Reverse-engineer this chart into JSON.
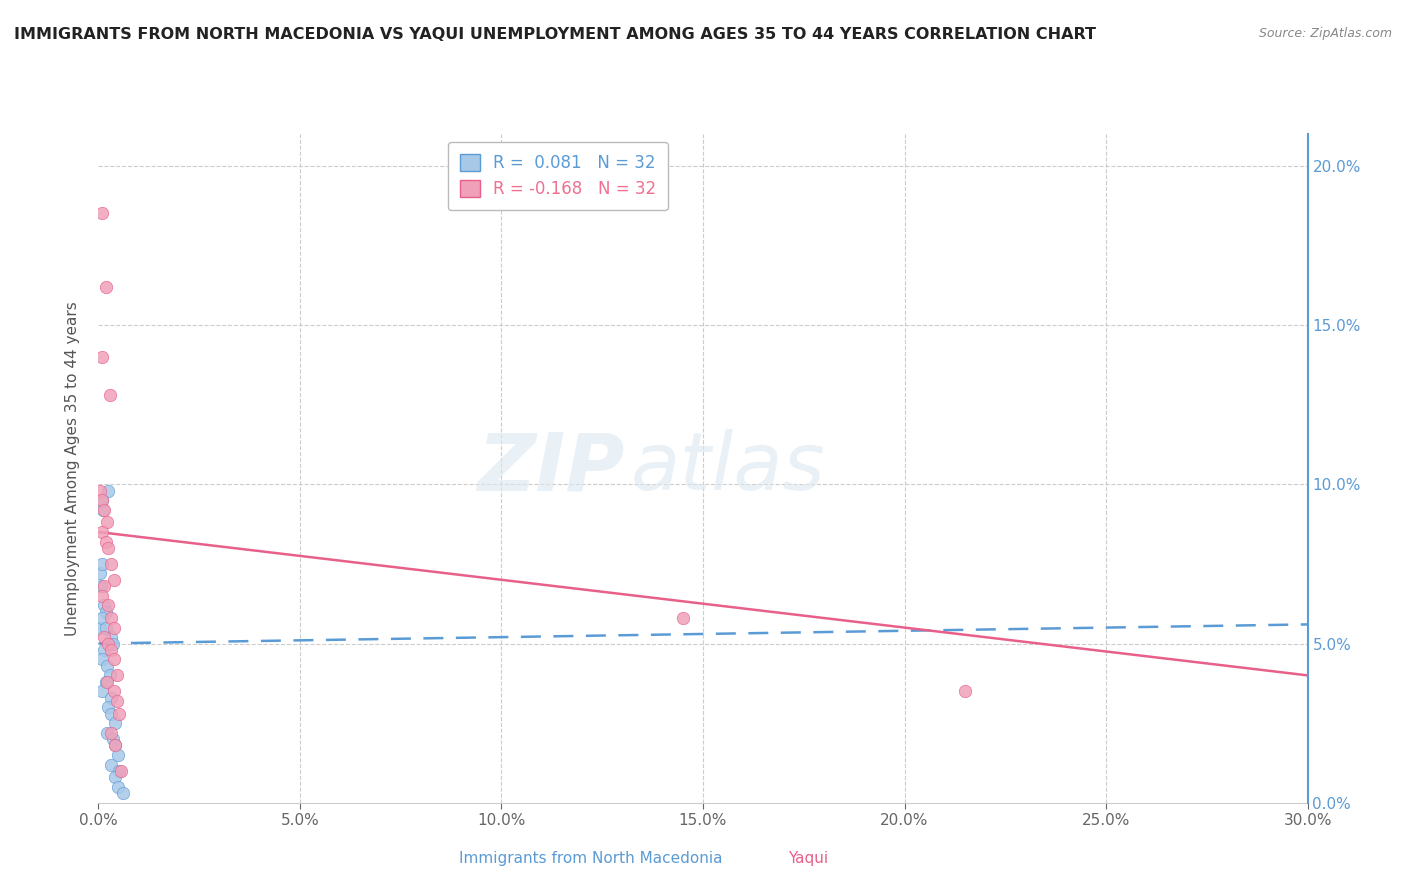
{
  "title": "IMMIGRANTS FROM NORTH MACEDONIA VS YAQUI UNEMPLOYMENT AMONG AGES 35 TO 44 YEARS CORRELATION CHART",
  "source": "Source: ZipAtlas.com",
  "xlabel_ticks": [
    "0.0%",
    "5.0%",
    "10.0%",
    "15.0%",
    "20.0%",
    "25.0%",
    "30.0%"
  ],
  "ylabel_right_ticks": [
    "0.0%",
    "5.0%",
    "10.0%",
    "15.0%",
    "20.0%"
  ],
  "xlim": [
    0.0,
    0.3
  ],
  "ylim": [
    0.0,
    0.21
  ],
  "xlabel_bottom": [
    "Immigrants from North Macedonia",
    "Yaqui"
  ],
  "watermark_zip": "ZIP",
  "watermark_atlas": "atlas",
  "legend": [
    {
      "label": "R =  0.081   N = 32",
      "color": "#5b9bd5"
    },
    {
      "label": "R = -0.168   N = 32",
      "color": "#f07090"
    }
  ],
  "blue_scatter": [
    [
      0.0005,
      0.055
    ],
    [
      0.0012,
      0.092
    ],
    [
      0.0008,
      0.095
    ],
    [
      0.0025,
      0.098
    ],
    [
      0.0003,
      0.072
    ],
    [
      0.0006,
      0.068
    ],
    [
      0.001,
      0.075
    ],
    [
      0.0015,
      0.062
    ],
    [
      0.002,
      0.06
    ],
    [
      0.0008,
      0.058
    ],
    [
      0.0018,
      0.055
    ],
    [
      0.003,
      0.052
    ],
    [
      0.0035,
      0.05
    ],
    [
      0.0015,
      0.048
    ],
    [
      0.0008,
      0.045
    ],
    [
      0.0022,
      0.043
    ],
    [
      0.0028,
      0.04
    ],
    [
      0.0018,
      0.038
    ],
    [
      0.001,
      0.035
    ],
    [
      0.0032,
      0.033
    ],
    [
      0.0025,
      0.03
    ],
    [
      0.003,
      0.028
    ],
    [
      0.004,
      0.025
    ],
    [
      0.0022,
      0.022
    ],
    [
      0.0035,
      0.02
    ],
    [
      0.004,
      0.018
    ],
    [
      0.0048,
      0.015
    ],
    [
      0.003,
      0.012
    ],
    [
      0.0052,
      0.01
    ],
    [
      0.0042,
      0.008
    ],
    [
      0.0048,
      0.005
    ],
    [
      0.006,
      0.003
    ]
  ],
  "pink_scatter": [
    [
      0.0008,
      0.185
    ],
    [
      0.0018,
      0.162
    ],
    [
      0.001,
      0.14
    ],
    [
      0.0028,
      0.128
    ],
    [
      0.0003,
      0.098
    ],
    [
      0.0008,
      0.095
    ],
    [
      0.0015,
      0.092
    ],
    [
      0.0022,
      0.088
    ],
    [
      0.001,
      0.085
    ],
    [
      0.0018,
      0.082
    ],
    [
      0.0025,
      0.08
    ],
    [
      0.0032,
      0.075
    ],
    [
      0.0038,
      0.07
    ],
    [
      0.0015,
      0.068
    ],
    [
      0.0008,
      0.065
    ],
    [
      0.0025,
      0.062
    ],
    [
      0.0032,
      0.058
    ],
    [
      0.0038,
      0.055
    ],
    [
      0.0015,
      0.052
    ],
    [
      0.0025,
      0.05
    ],
    [
      0.0032,
      0.048
    ],
    [
      0.0038,
      0.045
    ],
    [
      0.0045,
      0.04
    ],
    [
      0.0022,
      0.038
    ],
    [
      0.0038,
      0.035
    ],
    [
      0.0045,
      0.032
    ],
    [
      0.005,
      0.028
    ],
    [
      0.145,
      0.058
    ],
    [
      0.0032,
      0.022
    ],
    [
      0.004,
      0.018
    ],
    [
      0.215,
      0.035
    ],
    [
      0.0055,
      0.01
    ]
  ],
  "blue_line": {
    "x": [
      0.0,
      0.3
    ],
    "y": [
      0.05,
      0.056
    ]
  },
  "pink_line": {
    "x": [
      0.0,
      0.3
    ],
    "y": [
      0.085,
      0.04
    ]
  },
  "blue_color": "#5b9bd5",
  "blue_scatter_color": "#a8c8e8",
  "pink_color": "#e8608a",
  "pink_scatter_color": "#f0a0b8",
  "grid_color": "#cccccc",
  "background_color": "#ffffff",
  "right_axis_color": "#5b9bd5"
}
